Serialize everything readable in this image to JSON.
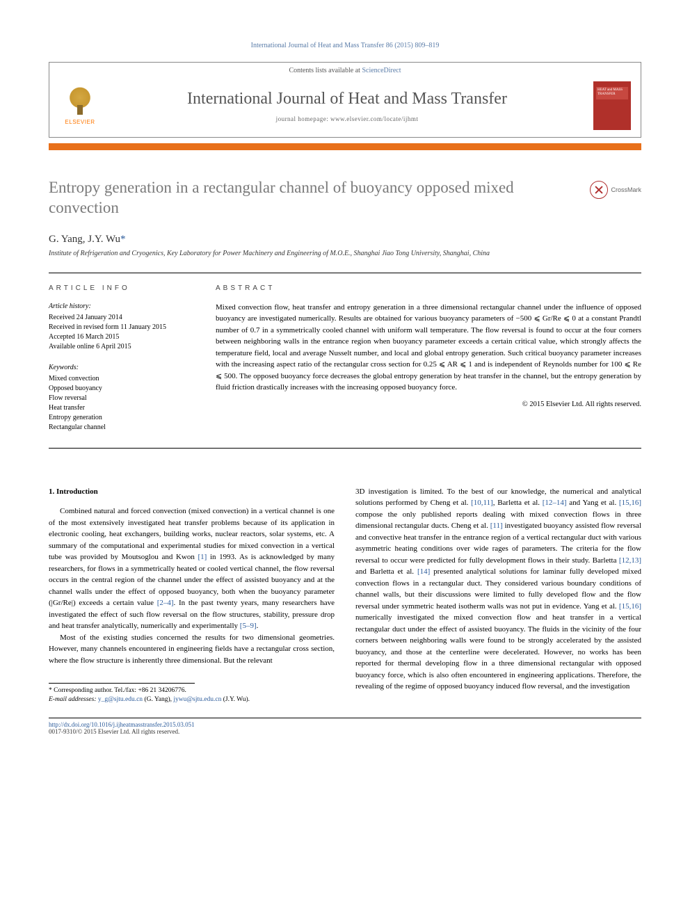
{
  "header": {
    "reference": "International Journal of Heat and Mass Transfer 86 (2015) 809–819",
    "contents_prefix": "Contents lists available at ",
    "contents_link": "ScienceDirect",
    "journal_name": "International Journal of Heat and Mass Transfer",
    "homepage": "journal homepage: www.elsevier.com/locate/ijhmt",
    "elsevier": "ELSEVIER",
    "cover_text": "HEAT and MASS TRANSFER"
  },
  "colors": {
    "orange_bar": "#e8701a",
    "cover_bg": "#b0302a",
    "link": "#2a5a9a",
    "title_gray": "#7a7a7a"
  },
  "article": {
    "title": "Entropy generation in a rectangular channel of buoyancy opposed mixed convection",
    "crossmark": "CrossMark",
    "authors_html": "G. Yang, J.Y. Wu",
    "corr_mark": "*",
    "affiliation": "Institute of Refrigeration and Cryogenics, Key Laboratory for Power Machinery and Engineering of M.O.E., Shanghai Jiao Tong University, Shanghai, China"
  },
  "info": {
    "heading": "article info",
    "history_label": "Article history:",
    "history": [
      "Received 24 January 2014",
      "Received in revised form 11 January 2015",
      "Accepted 16 March 2015",
      "Available online 6 April 2015"
    ],
    "keywords_label": "Keywords:",
    "keywords": [
      "Mixed convection",
      "Opposed buoyancy",
      "Flow reversal",
      "Heat transfer",
      "Entropy generation",
      "Rectangular channel"
    ]
  },
  "abstract": {
    "heading": "abstract",
    "text": "Mixed convection flow, heat transfer and entropy generation in a three dimensional rectangular channel under the influence of opposed buoyancy are investigated numerically. Results are obtained for various buoyancy parameters of −500 ⩽ Gr/Re ⩽ 0 at a constant Prandtl number of 0.7 in a symmetrically cooled channel with uniform wall temperature. The flow reversal is found to occur at the four corners between neighboring walls in the entrance region when buoyancy parameter exceeds a certain critical value, which strongly affects the temperature field, local and average Nusselt number, and local and global entropy generation. Such critical buoyancy parameter increases with the increasing aspect ratio of the rectangular cross section for 0.25 ⩽ AR ⩽ 1 and is independent of Reynolds number for 100 ⩽ Re ⩽ 500. The opposed buoyancy force decreases the global entropy generation by heat transfer in the channel, but the entropy generation by fluid friction drastically increases with the increasing opposed buoyancy force.",
    "copyright": "© 2015 Elsevier Ltd. All rights reserved."
  },
  "body": {
    "section_num": "1.",
    "section_title": "Introduction",
    "col1_p1": "Combined natural and forced convection (mixed convection) in a vertical channel is one of the most extensively investigated heat transfer problems because of its application in electronic cooling, heat exchangers, building works, nuclear reactors, solar systems, etc. A summary of the computational and experimental studies for mixed convection in a vertical tube was provided by Moutsoglou and Kwon ",
    "cite1": "[1]",
    "col1_p1b": " in 1993. As is acknowledged by many researchers, for flows in a symmetrically heated or cooled vertical channel, the flow reversal occurs in the central region of the channel under the effect of assisted buoyancy and at the channel walls under the effect of opposed buoyancy, both when the buoyancy parameter (|Gr/Re|) exceeds a certain value ",
    "cite2": "[2–4]",
    "col1_p1c": ". In the past twenty years, many researchers have investigated the effect of such flow reversal on the flow structures, stability, pressure drop and heat transfer analytically, numerically and experimentally ",
    "cite3": "[5–9]",
    "col1_p1d": ".",
    "col1_p2": "Most of the existing studies concerned the results for two dimensional geometries. However, many channels encountered in engineering fields have a rectangular cross section, where the flow structure is inherently three dimensional. But the relevant",
    "col2_p1a": "3D investigation is limited. To the best of our knowledge, the numerical and analytical solutions performed by Cheng et al. ",
    "cite4": "[10,11]",
    "col2_p1b": ", Barletta et al. ",
    "cite5": "[12–14]",
    "col2_p1c": " and Yang et al. ",
    "cite6": "[15,16]",
    "col2_p1d": " compose the only published reports dealing with mixed convection flows in three dimensional rectangular ducts. Cheng et al. ",
    "cite7": "[11]",
    "col2_p1e": " investigated buoyancy assisted flow reversal and convective heat transfer in the entrance region of a vertical rectangular duct with various asymmetric heating conditions over wide rages of parameters. The criteria for the flow reversal to occur were predicted for fully development flows in their study. Barletta ",
    "cite8": "[12,13]",
    "col2_p1f": " and Barletta et al. ",
    "cite9": "[14]",
    "col2_p1g": " presented analytical solutions for laminar fully developed mixed convection flows in a rectangular duct. They considered various boundary conditions of channel walls, but their discussions were limited to fully developed flow and the flow reversal under symmetric heated isotherm walls was not put in evidence. Yang et al. ",
    "cite10": "[15,16]",
    "col2_p1h": " numerically investigated the mixed convection flow and heat transfer in a vertical rectangular duct under the effect of assisted buoyancy. The fluids in the vicinity of the four corners between neighboring walls were found to be strongly accelerated by the assisted buoyancy, and those at the centerline were decelerated. However, no works has been reported for thermal developing flow in a three dimensional rectangular with opposed buoyancy force, which is also often encountered in engineering applications. Therefore, the revealing of the regime of opposed buoyancy induced flow reversal, and the investigation"
  },
  "footnotes": {
    "corr": "* Corresponding author. Tel./fax: +86 21 34206776.",
    "email_label": "E-mail addresses: ",
    "email1": "y_g@sjtu.edu.cn",
    "email1_who": " (G. Yang), ",
    "email2": "jywu@sjtu.edu.cn",
    "email2_who": " (J.Y. Wu)."
  },
  "bottom": {
    "doi": "http://dx.doi.org/10.1016/j.ijheatmasstransfer.2015.03.051",
    "issn": "0017-9310/© 2015 Elsevier Ltd. All rights reserved."
  }
}
